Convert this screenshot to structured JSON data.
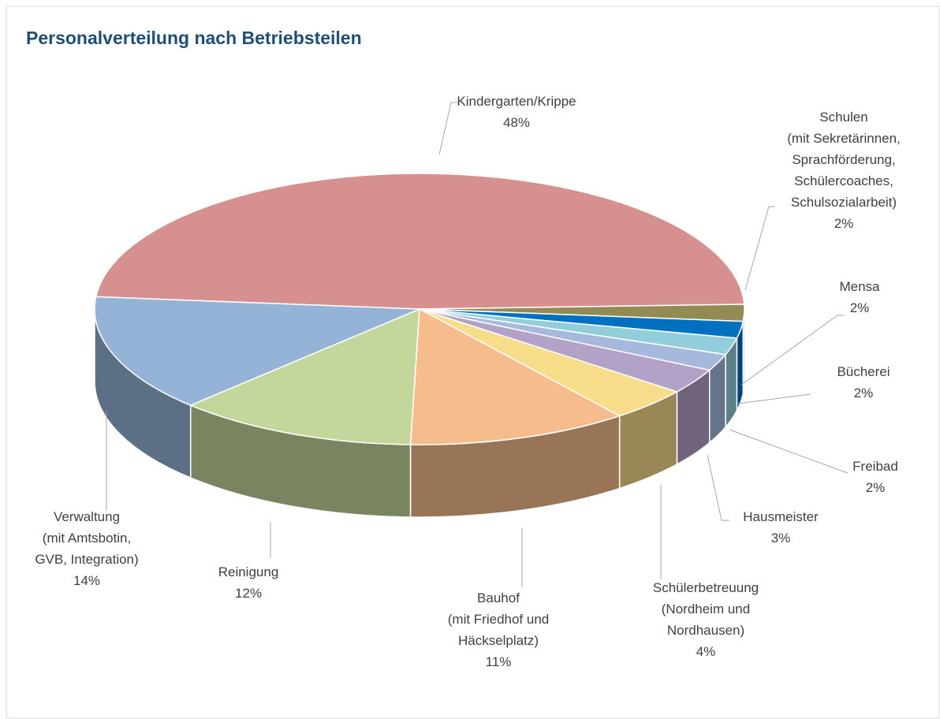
{
  "chart_data": {
    "type": "pie3d",
    "title": "Personalverteilung nach Betriebsteilen",
    "categories": [
      [
        "Kindergarten/Krippe"
      ],
      [
        "Schulen",
        "(mit Sekretärinnen,",
        "Sprachförderung,",
        "Schülercoaches,",
        "Schulsozialarbeit)"
      ],
      [
        "Mensa"
      ],
      [
        "Bücherei"
      ],
      [
        "Freibad"
      ],
      [
        "Hausmeister"
      ],
      [
        "Schülerbetreuung",
        "(Nordheim und",
        "Nordhausen)"
      ],
      [
        "Bauhof",
        "(mit Friedhof und",
        "Häckselplatz)"
      ],
      [
        "Reinigung"
      ],
      [
        "Verwaltung",
        "(mit Amtsbotin,",
        "GVB, Integration)"
      ]
    ],
    "values": [
      48,
      2,
      2,
      2,
      2,
      3,
      4,
      11,
      12,
      14
    ],
    "value_labels": [
      "48%",
      "2%",
      "2%",
      "2%",
      "2%",
      "3%",
      "4%",
      "11%",
      "12%",
      "14%"
    ],
    "colors": [
      "#d6908f",
      "#948a54",
      "#0070c0",
      "#92cddc",
      "#a6b9dc",
      "#b3a2c7",
      "#f7dc8a",
      "#f7bc8c",
      "#c3d69b",
      "#95b3d7"
    ]
  }
}
